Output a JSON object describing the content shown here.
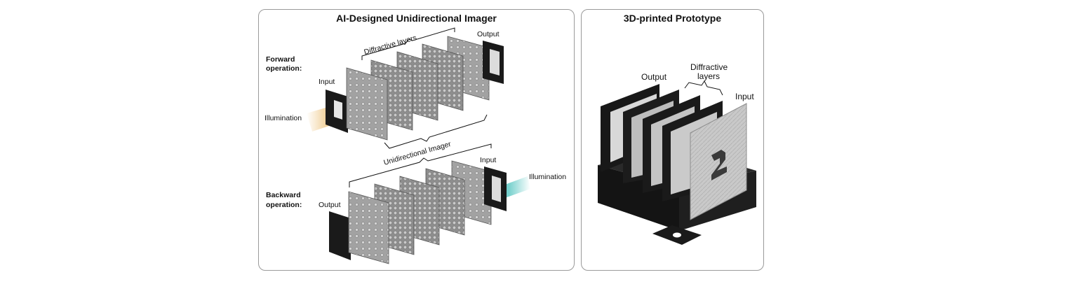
{
  "left_panel": {
    "title": "AI-Designed Unidirectional Imager",
    "forward": {
      "label_line1": "Forward",
      "label_line2": "operation:",
      "input": "Input",
      "output": "Output",
      "illumination": "Illumination",
      "layers": "Diffractive layers"
    },
    "imager": "Unidirectional Imager",
    "backward": {
      "label_line1": "Backward",
      "label_line2": "operation:",
      "input": "Input",
      "output": "Output",
      "illumination": "Illumination"
    }
  },
  "right_panel": {
    "title": "3D-printed Prototype",
    "output": "Output",
    "layers_line1": "Diffractive",
    "layers_line2": "layers",
    "input": "Input"
  },
  "colors": {
    "forward_beam": "#e8b35a",
    "backward_beam": "#5ec8c4",
    "layer_fill": "#9a9a9a",
    "frame": "#9a9a9a"
  }
}
